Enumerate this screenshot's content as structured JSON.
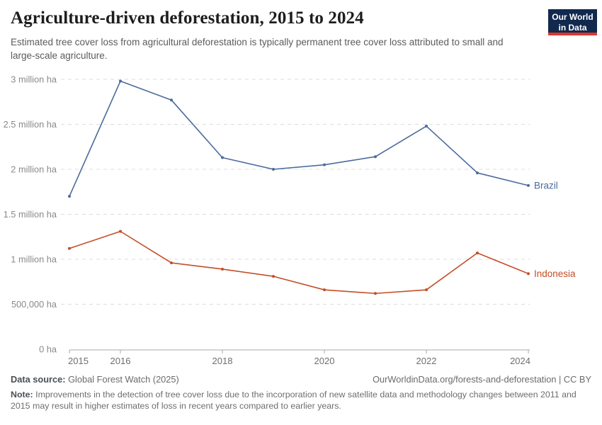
{
  "header": {
    "title": "Agriculture-driven deforestation, 2015 to 2024",
    "subtitle": "Estimated tree cover loss from agricultural deforestation is typically permanent tree cover loss attributed to small and large-scale agriculture.",
    "logo": {
      "line1": "Our World",
      "line2": "in Data",
      "bg_color": "#12294E",
      "accent_color": "#DC3830"
    }
  },
  "chart_data": {
    "type": "line",
    "title": "Agriculture-driven deforestation, 2015 to 2024",
    "unit": "hectares of tree cover loss per year",
    "x": [
      2015,
      2016,
      2017,
      2018,
      2019,
      2020,
      2021,
      2022,
      2023,
      2024
    ],
    "series": [
      {
        "name": "Brazil",
        "color": "#4C6B9C",
        "values_million_ha": [
          1.7,
          2.98,
          2.77,
          2.13,
          2.0,
          2.05,
          2.14,
          2.48,
          1.96,
          1.82
        ]
      },
      {
        "name": "Indonesia",
        "color": "#C34E27",
        "values_million_ha": [
          1.12,
          1.31,
          0.96,
          0.89,
          0.81,
          0.66,
          0.62,
          0.66,
          1.07,
          0.84
        ]
      }
    ],
    "ylim": [
      0,
      3
    ],
    "y_ticks": [
      {
        "value": 0,
        "label": "0 ha"
      },
      {
        "value": 0.5,
        "label": "500,000 ha"
      },
      {
        "value": 1,
        "label": "1 million ha"
      },
      {
        "value": 1.5,
        "label": "1.5 million ha"
      },
      {
        "value": 2,
        "label": "2 million ha"
      },
      {
        "value": 2.5,
        "label": "2.5 million ha"
      },
      {
        "value": 3,
        "label": "3 million ha"
      }
    ],
    "x_tick_labels": [
      2015,
      2016,
      2018,
      2020,
      2022,
      2024
    ],
    "grid": "horizontal-dashed",
    "legend_position": "end-of-line-labels",
    "colors": {
      "gridline": "#dcdcdc",
      "axis": "#a8a8a8",
      "y_tick_label": "#8a8a8a",
      "x_tick_label": "#6e6e6e"
    }
  },
  "footer": {
    "data_source_label": "Data source:",
    "data_source": "Global Forest Watch (2025)",
    "link": "OurWorldinData.org/forests-and-deforestation | CC BY",
    "note_label": "Note:",
    "note": "Improvements in the detection of tree cover loss due to the incorporation of new satellite data and methodology changes between 2011 and 2015 may result in higher estimates of loss in recent years compared to earlier years."
  }
}
